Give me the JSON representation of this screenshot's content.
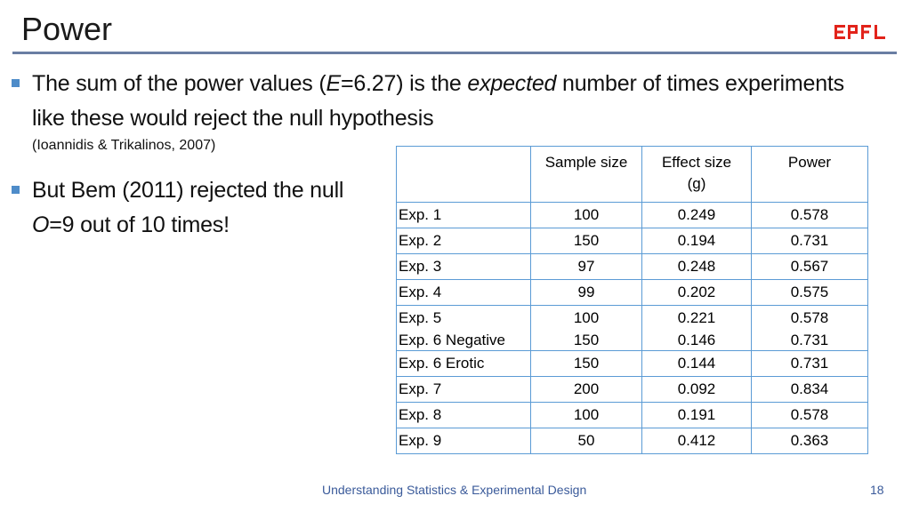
{
  "title": "Power",
  "logo": {
    "text": "EPFL",
    "color": "#e2231a"
  },
  "bullets": [
    {
      "line1_pre": "The sum of the power values (",
      "line1_var": "E",
      "line1_post": "=6.27) is the ",
      "line1_em": "expected",
      "line1_end": " number of times experiments",
      "line2": "like these would reject the null hypothesis"
    },
    {
      "line1": "But Bem (2011) rejected the null",
      "line2_var": "O",
      "line2_rest": "=9 out of 10 times!"
    }
  ],
  "citation": "(Ioannidis & Trikalinos, 2007)",
  "table": {
    "headers": [
      "",
      "Sample size",
      "Effect size\n(g)",
      "Power"
    ],
    "rows": [
      {
        "name": "Exp. 1",
        "n": "100",
        "g": "0.249",
        "power": "0.578"
      },
      {
        "name": "Exp. 2",
        "n": "150",
        "g": "0.194",
        "power": "0.731"
      },
      {
        "name": "Exp. 3",
        "n": "97",
        "g": "0.248",
        "power": "0.567"
      },
      {
        "name": "Exp. 4",
        "n": "99",
        "g": "0.202",
        "power": "0.575"
      },
      {
        "name": "Exp. 5",
        "n": "100",
        "g": "0.221",
        "power": "0.578"
      },
      {
        "name": "Exp. 6 Negative",
        "n": "150",
        "g": "0.146",
        "power": "0.731"
      },
      {
        "name": "Exp. 6 Erotic",
        "n": "150",
        "g": "0.144",
        "power": "0.731"
      },
      {
        "name": "Exp. 7",
        "n": "200",
        "g": "0.092",
        "power": "0.834"
      },
      {
        "name": "Exp. 8",
        "n": "100",
        "g": "0.191",
        "power": "0.578"
      },
      {
        "name": "Exp. 9",
        "n": "50",
        "g": "0.412",
        "power": "0.363"
      }
    ]
  },
  "footer": "Understanding Statistics & Experimental Design",
  "page_number": "18",
  "colors": {
    "accent": "#4e8cc9",
    "table_border": "#5b9bd5",
    "rule": "#6a7ea3",
    "footer_text": "#3a5a9a"
  }
}
